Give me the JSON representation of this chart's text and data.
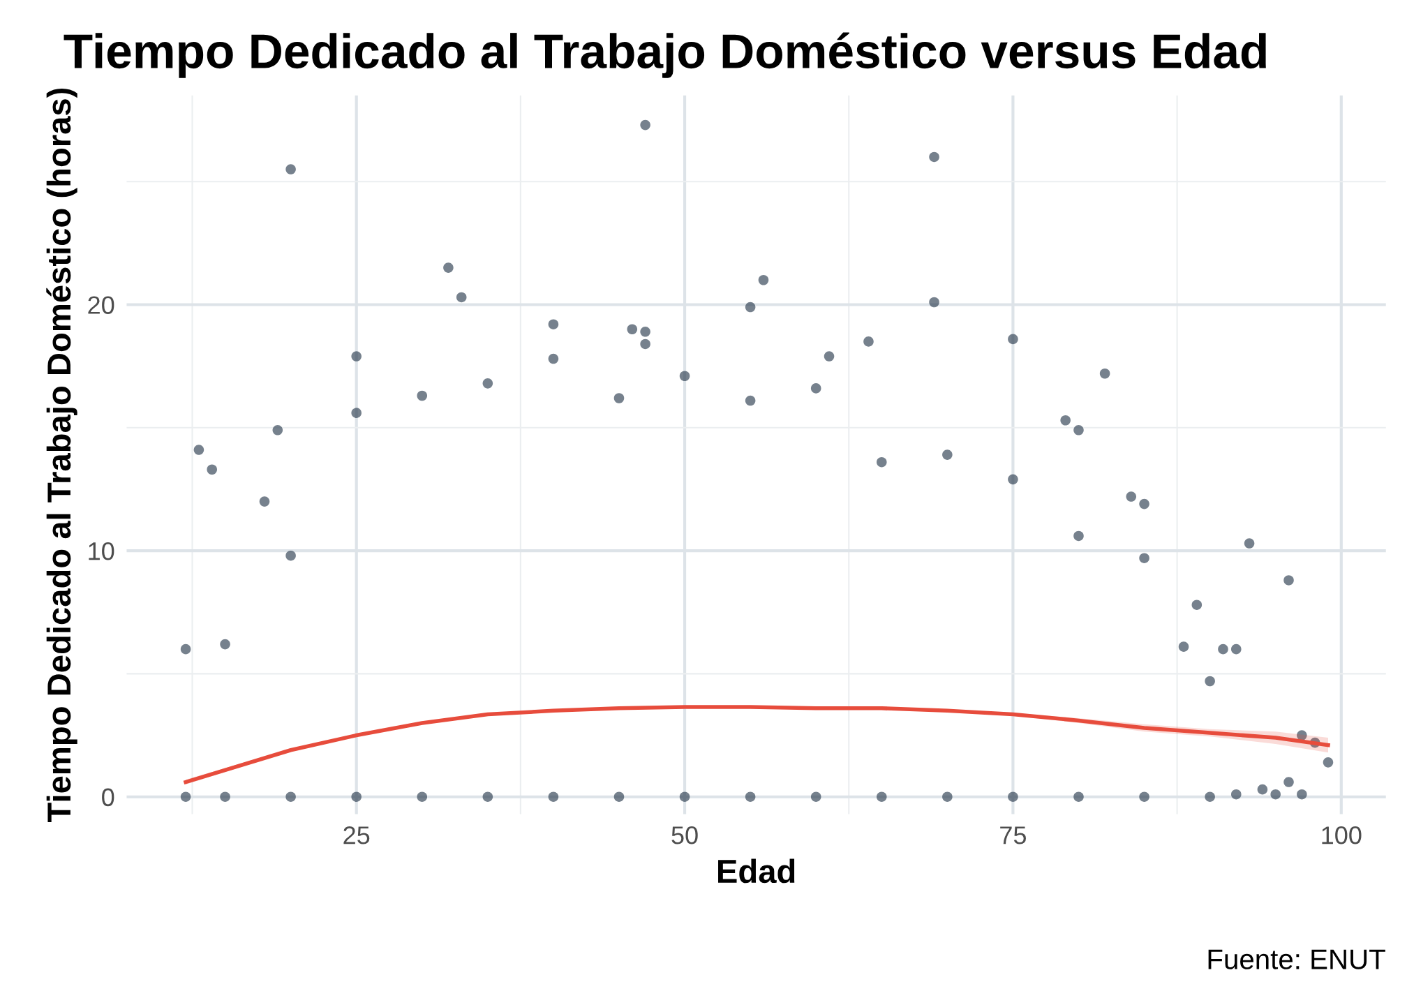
{
  "chart_data": {
    "type": "scatter",
    "title": "Tiempo Dedicado al Trabajo Doméstico versus Edad",
    "xlabel": "Edad",
    "ylabel": "Tiempo Dedicado al Trabajo Doméstico (horas)",
    "annotations": [
      "Fuente: ENUT"
    ],
    "xlim": [
      7.5,
      103.4
    ],
    "ylim": [
      -0.7,
      28.5
    ],
    "xticks": [
      {
        "value": 12.5,
        "label": null
      },
      25,
      {
        "value": 37.5,
        "label": null
      },
      50,
      {
        "value": 62.5,
        "label": null
      },
      75,
      {
        "value": 87.5,
        "label": null
      },
      100
    ],
    "yticks": [
      0,
      {
        "value": 5,
        "label": null
      },
      10,
      {
        "value": 15,
        "label": null
      },
      20,
      {
        "value": 25,
        "label": null
      }
    ],
    "grid": true,
    "series": [
      {
        "marker": "circle",
        "color": "#2c3e50",
        "x": [
          20,
          47,
          69,
          69,
          32,
          33,
          56,
          55,
          40,
          46,
          47,
          47,
          75,
          64,
          61,
          25,
          82,
          13,
          14,
          19,
          93,
          96,
          89,
          84,
          85,
          79,
          80,
          92,
          91,
          99,
          98,
          97,
          96,
          95,
          92,
          12,
          15,
          18,
          20,
          25,
          30,
          35,
          40,
          45,
          50,
          55,
          60,
          65,
          70,
          75,
          80,
          85,
          88,
          90,
          12,
          15,
          20,
          25,
          30,
          35,
          40,
          45,
          50,
          55,
          60,
          65,
          70,
          75,
          80,
          85,
          90,
          94,
          97
        ],
        "values": [
          25.5,
          27.3,
          26.0,
          20.1,
          21.5,
          20.3,
          21.0,
          19.9,
          19.2,
          19.0,
          18.9,
          18.4,
          18.6,
          18.5,
          17.9,
          17.9,
          17.2,
          14.1,
          13.3,
          14.9,
          10.3,
          8.8,
          7.8,
          12.2,
          11.9,
          15.3,
          14.9,
          6.0,
          6.0,
          1.4,
          2.2,
          2.5,
          0.6,
          0.1,
          0.1,
          6.0,
          6.2,
          12.0,
          9.8,
          15.6,
          16.3,
          16.8,
          17.8,
          16.2,
          17.1,
          16.1,
          16.6,
          13.6,
          13.9,
          12.9,
          10.6,
          9.7,
          6.1,
          4.7,
          0,
          0,
          0,
          0,
          0,
          0,
          0,
          0,
          0,
          0,
          0,
          0,
          0,
          0,
          0,
          0,
          0,
          0.3,
          0.1
        ]
      },
      {
        "type": "line",
        "color": "#e74c3c",
        "x": [
          12,
          20,
          25,
          30,
          35,
          40,
          45,
          50,
          55,
          60,
          65,
          70,
          75,
          80,
          85,
          90,
          95,
          99
        ],
        "values": [
          0.6,
          1.9,
          2.5,
          3.0,
          3.35,
          3.5,
          3.6,
          3.65,
          3.65,
          3.6,
          3.6,
          3.5,
          3.35,
          3.1,
          2.8,
          2.6,
          2.4,
          2.1
        ],
        "lower": [
          0.5,
          1.85,
          2.45,
          2.95,
          3.3,
          3.45,
          3.55,
          3.6,
          3.6,
          3.55,
          3.55,
          3.45,
          3.3,
          3.0,
          2.65,
          2.45,
          2.15,
          1.8
        ],
        "upper": [
          0.7,
          1.95,
          2.55,
          3.05,
          3.4,
          3.55,
          3.65,
          3.7,
          3.7,
          3.65,
          3.65,
          3.55,
          3.4,
          3.2,
          2.95,
          2.75,
          2.65,
          2.4
        ]
      }
    ]
  }
}
